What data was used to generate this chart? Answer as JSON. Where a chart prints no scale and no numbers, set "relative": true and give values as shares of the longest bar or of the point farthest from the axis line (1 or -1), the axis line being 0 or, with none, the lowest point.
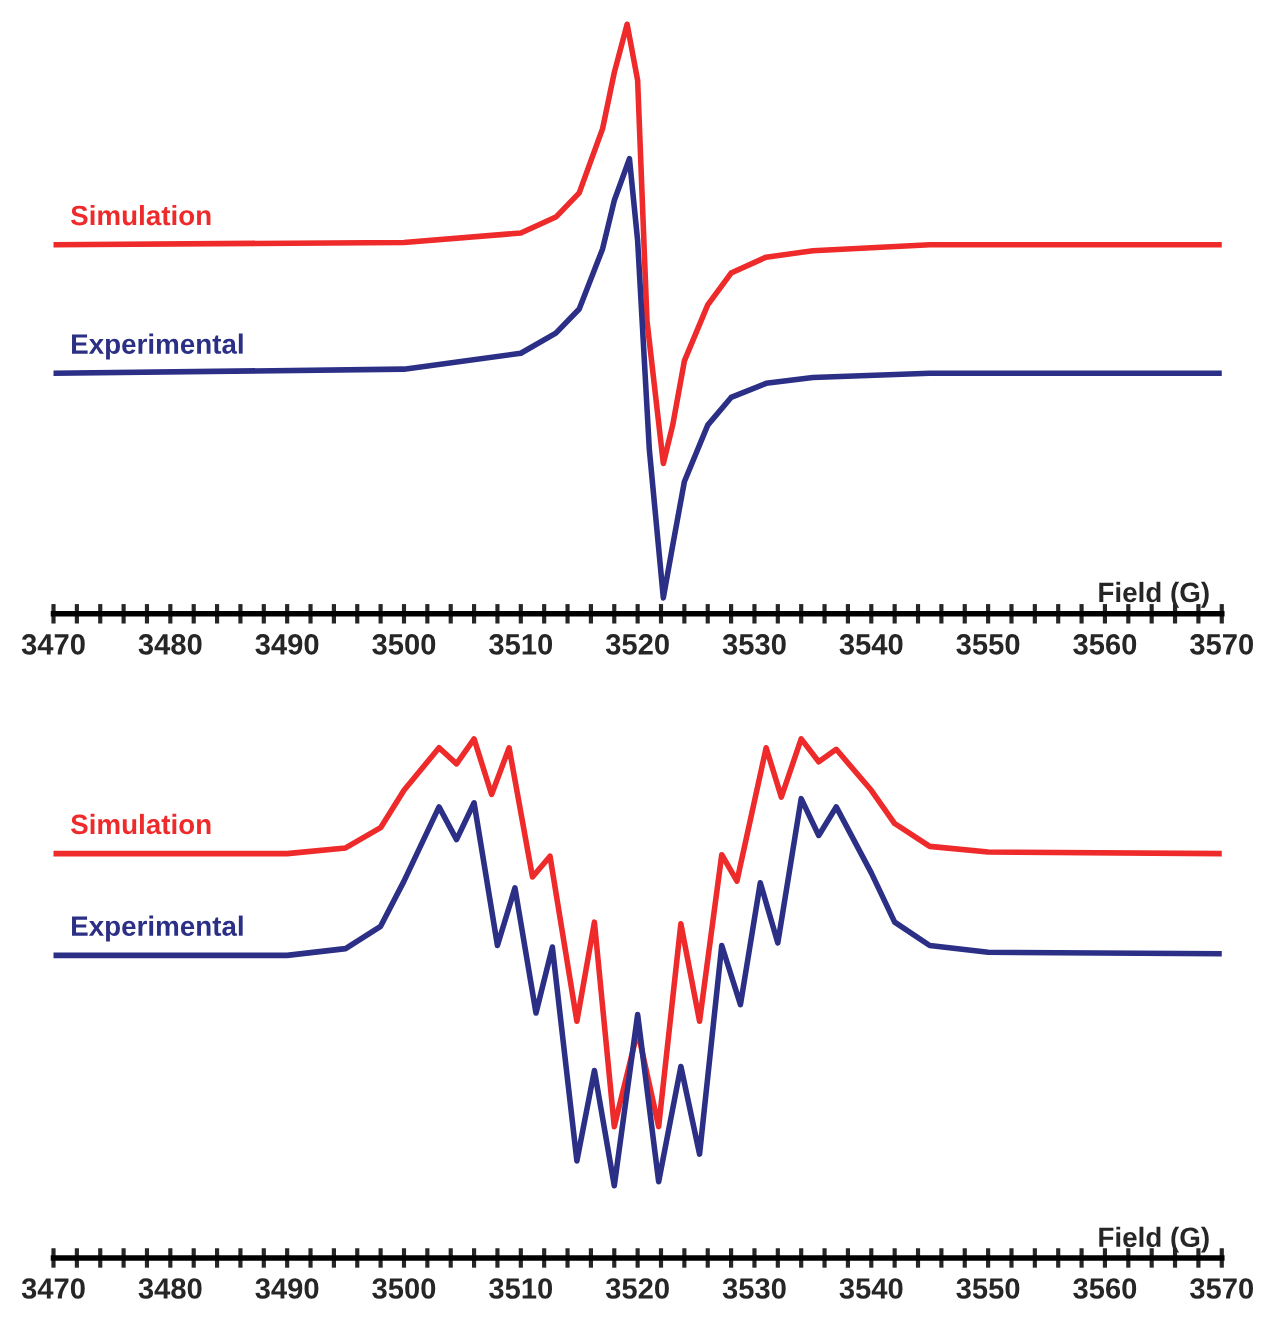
{
  "chart_data": [
    {
      "type": "line",
      "relative": true,
      "xlabel": "Field (G)",
      "xlim": [
        3470,
        3570
      ],
      "xticks": [
        3470,
        {
          "value": 3472,
          "label": null
        },
        {
          "value": 3474,
          "label": null
        },
        {
          "value": 3476,
          "label": null
        },
        {
          "value": 3478,
          "label": null
        },
        3480,
        {
          "value": 3482,
          "label": null
        },
        {
          "value": 3484,
          "label": null
        },
        {
          "value": 3486,
          "label": null
        },
        {
          "value": 3488,
          "label": null
        },
        3490,
        {
          "value": 3492,
          "label": null
        },
        {
          "value": 3494,
          "label": null
        },
        {
          "value": 3496,
          "label": null
        },
        {
          "value": 3498,
          "label": null
        },
        3500,
        {
          "value": 3502,
          "label": null
        },
        {
          "value": 3504,
          "label": null
        },
        {
          "value": 3506,
          "label": null
        },
        {
          "value": 3508,
          "label": null
        },
        3510,
        {
          "value": 3512,
          "label": null
        },
        {
          "value": 3514,
          "label": null
        },
        {
          "value": 3516,
          "label": null
        },
        {
          "value": 3518,
          "label": null
        },
        3520,
        {
          "value": 3522,
          "label": null
        },
        {
          "value": 3524,
          "label": null
        },
        {
          "value": 3526,
          "label": null
        },
        {
          "value": 3528,
          "label": null
        },
        3530,
        {
          "value": 3532,
          "label": null
        },
        {
          "value": 3534,
          "label": null
        },
        {
          "value": 3536,
          "label": null
        },
        {
          "value": 3538,
          "label": null
        },
        3540,
        {
          "value": 3542,
          "label": null
        },
        {
          "value": 3544,
          "label": null
        },
        {
          "value": 3546,
          "label": null
        },
        {
          "value": 3548,
          "label": null
        },
        3550,
        {
          "value": 3552,
          "label": null
        },
        {
          "value": 3554,
          "label": null
        },
        {
          "value": 3556,
          "label": null
        },
        {
          "value": 3558,
          "label": null
        },
        3560,
        {
          "value": 3562,
          "label": null
        },
        {
          "value": 3564,
          "label": null
        },
        {
          "value": 3566,
          "label": null
        },
        {
          "value": 3568,
          "label": null
        },
        3570
      ],
      "tick_labels": "x",
      "grid": false,
      "legend": false,
      "marker": "none",
      "line_style": "solid",
      "series": [
        {
          "name": "Simulation",
          "color": "#ee2a2a",
          "x": [
            3470,
            3500,
            3510,
            3513,
            3515,
            3517,
            3518,
            3519.1,
            3520,
            3520.8,
            3522.2,
            3523,
            3524,
            3526,
            3528,
            3531,
            3535,
            3545,
            3570
          ],
          "values": [
            0.626,
            0.63,
            0.646,
            0.673,
            0.714,
            0.823,
            0.918,
            1.0,
            0.905,
            0.497,
            0.255,
            0.32,
            0.429,
            0.524,
            0.578,
            0.605,
            0.616,
            0.626,
            0.626
          ]
        },
        {
          "name": "Experimental",
          "color": "#2b2f86",
          "x": [
            3470,
            3500,
            3510,
            3513,
            3515,
            3517,
            3518,
            3519.3,
            3520,
            3521,
            3522.2,
            3523,
            3524,
            3526,
            3528,
            3531,
            3535,
            3545,
            3570
          ],
          "values": [
            0.408,
            0.415,
            0.442,
            0.476,
            0.517,
            0.619,
            0.701,
            0.772,
            0.633,
            0.279,
            0.027,
            0.116,
            0.224,
            0.32,
            0.367,
            0.391,
            0.401,
            0.408,
            0.408
          ]
        }
      ]
    },
    {
      "type": "line",
      "relative": true,
      "xlabel": "Field (G)",
      "xlim": [
        3470,
        3570
      ],
      "xticks": [
        3470,
        {
          "value": 3472,
          "label": null
        },
        {
          "value": 3474,
          "label": null
        },
        {
          "value": 3476,
          "label": null
        },
        {
          "value": 3478,
          "label": null
        },
        3480,
        {
          "value": 3482,
          "label": null
        },
        {
          "value": 3484,
          "label": null
        },
        {
          "value": 3486,
          "label": null
        },
        {
          "value": 3488,
          "label": null
        },
        3490,
        {
          "value": 3492,
          "label": null
        },
        {
          "value": 3494,
          "label": null
        },
        {
          "value": 3496,
          "label": null
        },
        {
          "value": 3498,
          "label": null
        },
        3500,
        {
          "value": 3502,
          "label": null
        },
        {
          "value": 3504,
          "label": null
        },
        {
          "value": 3506,
          "label": null
        },
        {
          "value": 3508,
          "label": null
        },
        3510,
        {
          "value": 3512,
          "label": null
        },
        {
          "value": 3514,
          "label": null
        },
        {
          "value": 3516,
          "label": null
        },
        {
          "value": 3518,
          "label": null
        },
        3520,
        {
          "value": 3522,
          "label": null
        },
        {
          "value": 3524,
          "label": null
        },
        {
          "value": 3526,
          "label": null
        },
        {
          "value": 3528,
          "label": null
        },
        3530,
        {
          "value": 3532,
          "label": null
        },
        {
          "value": 3534,
          "label": null
        },
        {
          "value": 3536,
          "label": null
        },
        {
          "value": 3538,
          "label": null
        },
        3540,
        {
          "value": 3542,
          "label": null
        },
        {
          "value": 3544,
          "label": null
        },
        {
          "value": 3546,
          "label": null
        },
        {
          "value": 3548,
          "label": null
        },
        3550,
        {
          "value": 3552,
          "label": null
        },
        {
          "value": 3554,
          "label": null
        },
        {
          "value": 3556,
          "label": null
        },
        {
          "value": 3558,
          "label": null
        },
        3560,
        {
          "value": 3562,
          "label": null
        },
        {
          "value": 3564,
          "label": null
        },
        {
          "value": 3566,
          "label": null
        },
        {
          "value": 3568,
          "label": null
        },
        3570
      ],
      "tick_labels": "x",
      "grid": false,
      "legend": false,
      "marker": "none",
      "line_style": "solid",
      "series": [
        {
          "name": "Simulation",
          "color": "#ee2a2a",
          "x": [
            3470,
            3490,
            3495,
            3498,
            3500,
            3503,
            3504.5,
            3506,
            3507.5,
            3509,
            3511,
            3512.5,
            3514.8,
            3516.3,
            3518,
            3520,
            3521.8,
            3523.7,
            3525.3,
            3527.2,
            3528.5,
            3531,
            3532.3,
            3534,
            3535.5,
            3537,
            3540,
            3542,
            3545,
            3550,
            3570
          ],
          "values": [
            0.779,
            0.779,
            0.79,
            0.829,
            0.901,
            0.983,
            0.952,
            1.0,
            0.893,
            0.983,
            0.734,
            0.774,
            0.456,
            0.647,
            0.253,
            0.437,
            0.253,
            0.644,
            0.456,
            0.777,
            0.726,
            0.983,
            0.888,
            1.0,
            0.956,
            0.98,
            0.901,
            0.837,
            0.793,
            0.782,
            0.779
          ]
        },
        {
          "name": "Experimental",
          "color": "#2b2f86",
          "x": [
            3470,
            3490,
            3495,
            3498,
            3500,
            3503,
            3504.5,
            3506,
            3508,
            3509.5,
            3511.3,
            3512.7,
            3514.8,
            3516.3,
            3518,
            3520,
            3521.8,
            3523.7,
            3525.3,
            3527.2,
            3528.8,
            3530.5,
            3532,
            3534,
            3535.5,
            3537,
            3540,
            3542,
            3545,
            3550,
            3570
          ],
          "values": [
            0.583,
            0.583,
            0.596,
            0.639,
            0.726,
            0.869,
            0.806,
            0.877,
            0.602,
            0.713,
            0.472,
            0.599,
            0.187,
            0.361,
            0.139,
            0.469,
            0.147,
            0.369,
            0.2,
            0.602,
            0.488,
            0.723,
            0.607,
            0.885,
            0.814,
            0.869,
            0.742,
            0.647,
            0.602,
            0.589,
            0.586
          ]
        }
      ]
    }
  ]
}
